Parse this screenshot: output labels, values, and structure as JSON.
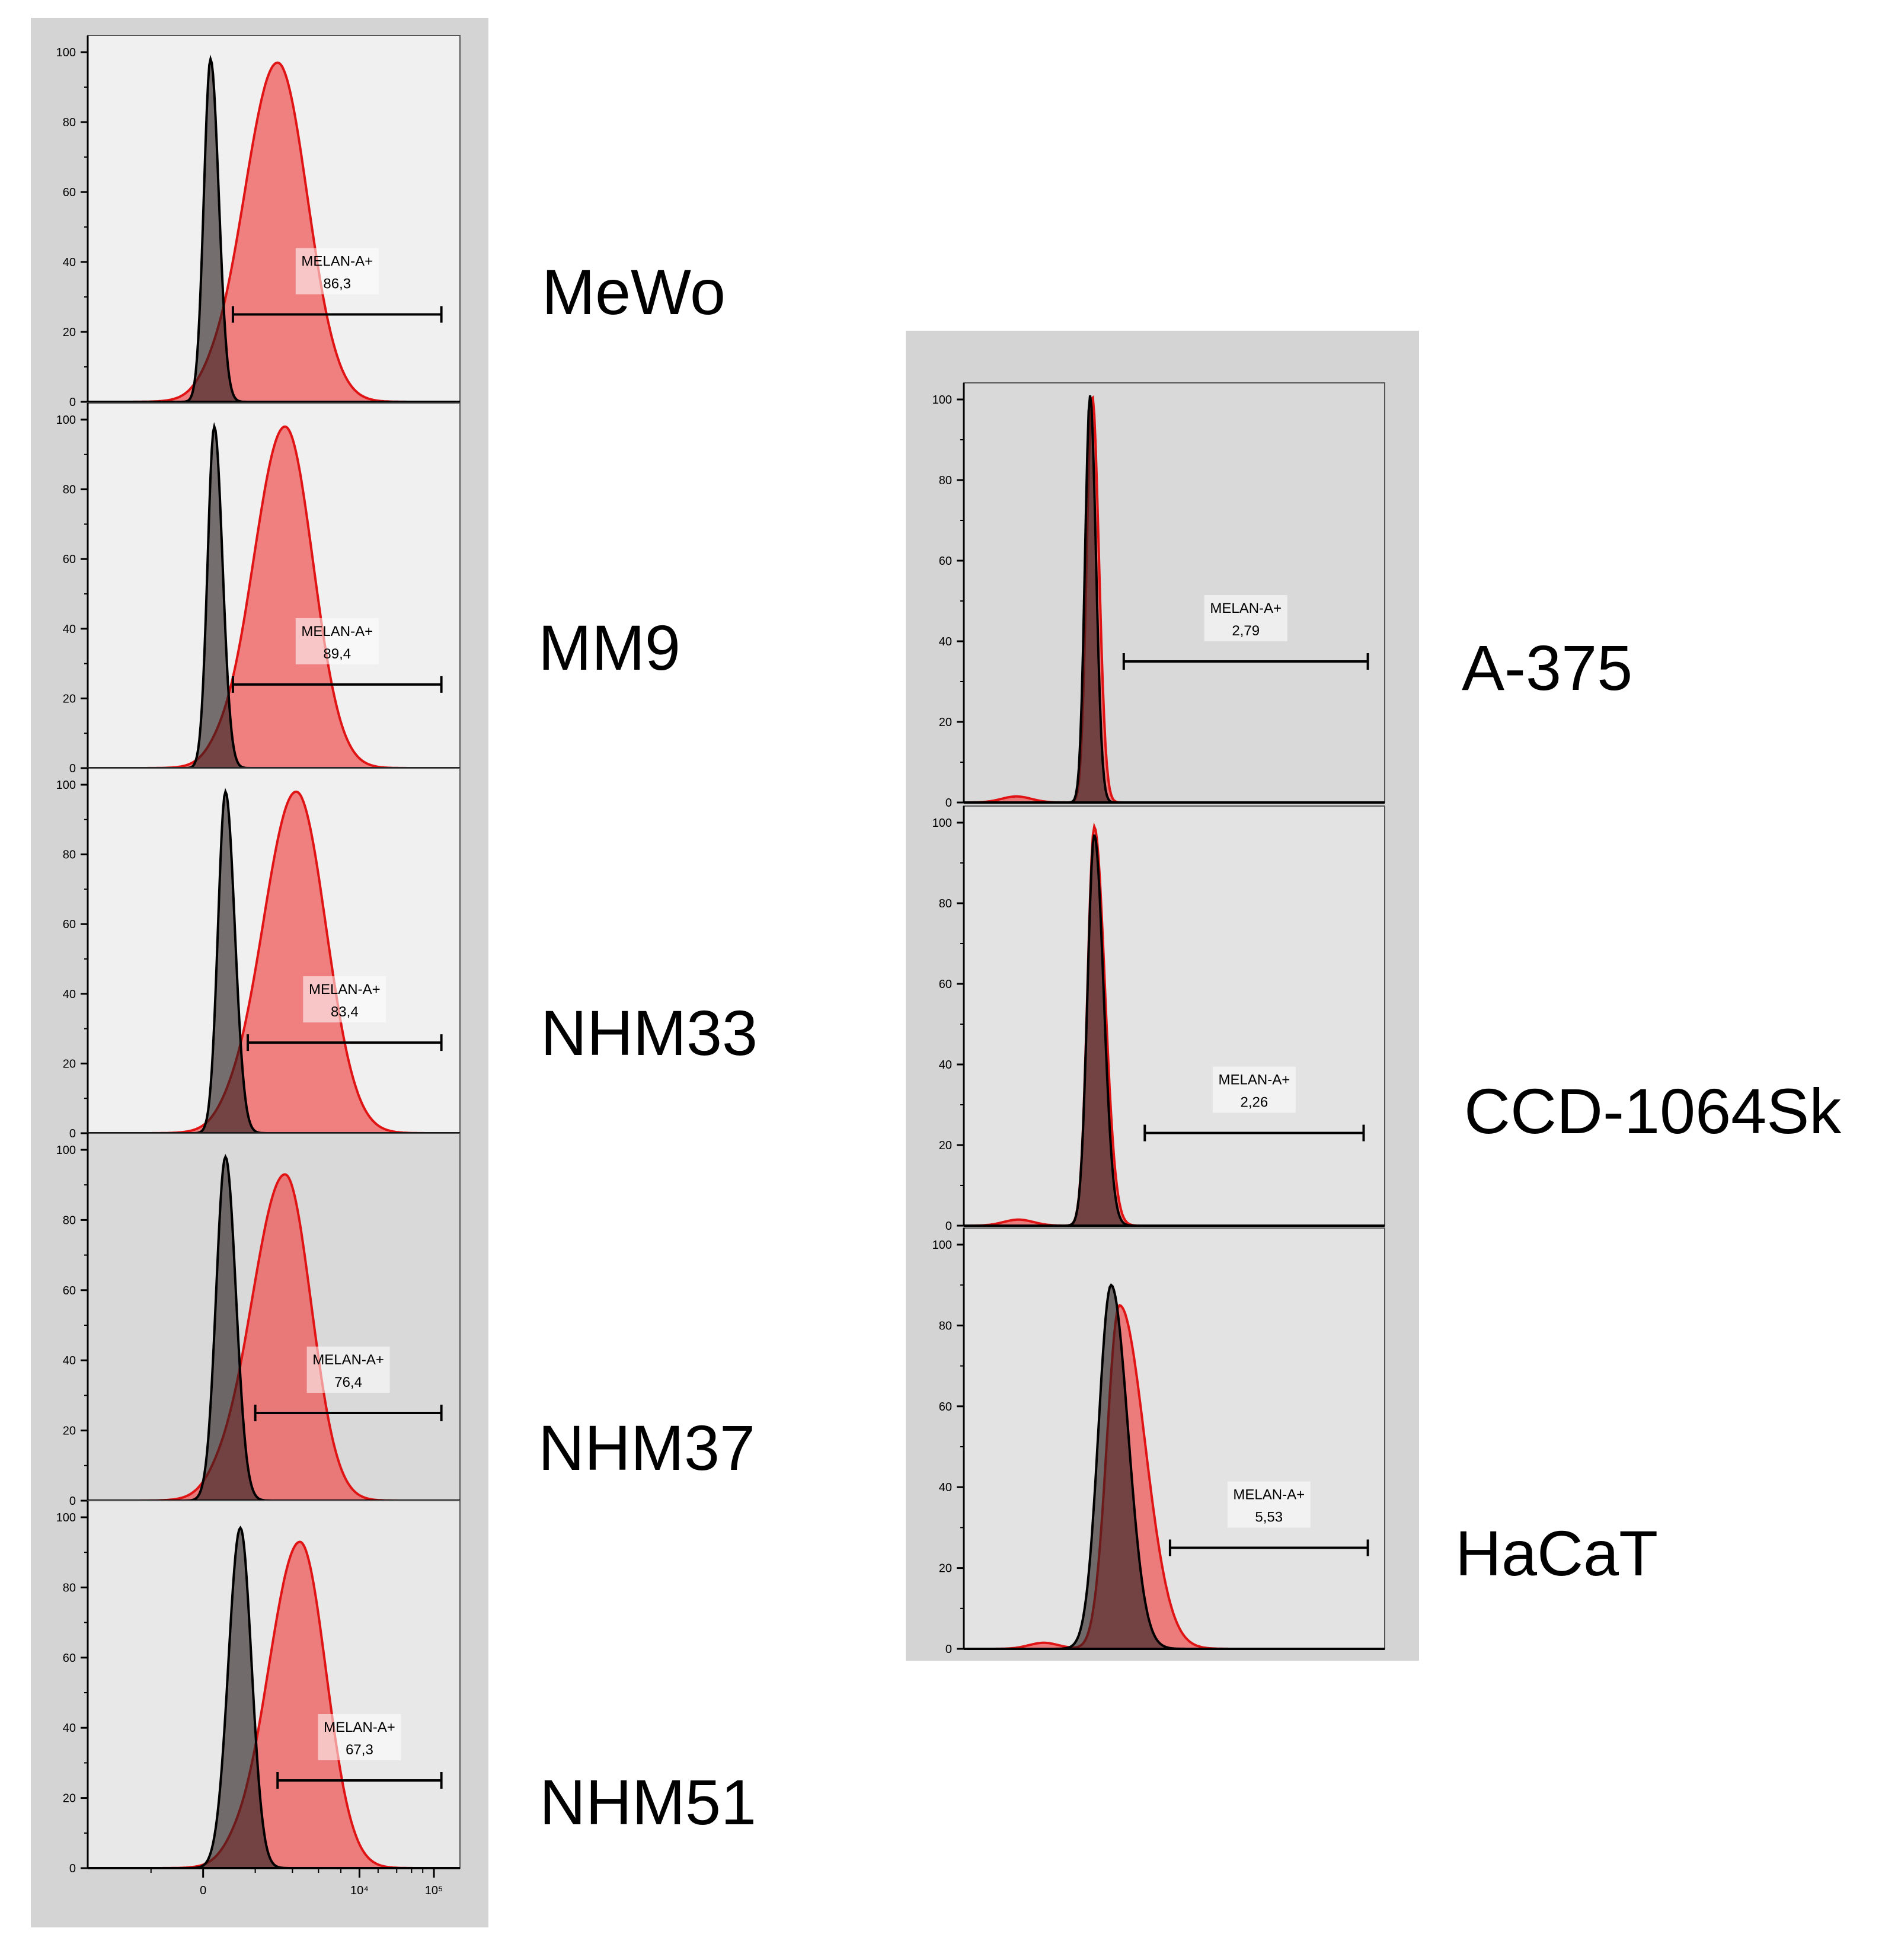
{
  "chart_data": [
    {
      "type": "area",
      "sample": "MeWo",
      "panel_bg": "#f0f0f0",
      "yticks": [
        "0",
        "20",
        "40",
        "60",
        "80",
        "100"
      ],
      "y_range": [
        0,
        100
      ],
      "x_range": [
        0,
        1
      ],
      "gate": {
        "label": "MELAN-A+",
        "value": "86,3",
        "x_start": 0.39,
        "x_end": 0.95,
        "y": 25
      },
      "series": [
        {
          "role": "control",
          "color": "#000000",
          "peak_x": 0.33,
          "peak_y": 98,
          "sigma_left": 0.018,
          "sigma_right": 0.022
        },
        {
          "role": "stained",
          "color": "#e01414",
          "peak_x": 0.51,
          "peak_y": 97,
          "sigma_left": 0.09,
          "sigma_right": 0.08
        }
      ]
    },
    {
      "type": "area",
      "sample": "MM9",
      "panel_bg": "#f0f0f0",
      "yticks": [
        "0",
        "20",
        "40",
        "60",
        "80",
        "100"
      ],
      "y_range": [
        0,
        100
      ],
      "x_range": [
        0,
        1
      ],
      "gate": {
        "label": "MELAN-A+",
        "value": "89,4",
        "x_start": 0.39,
        "x_end": 0.95,
        "y": 24
      },
      "series": [
        {
          "role": "control",
          "color": "#000000",
          "peak_x": 0.34,
          "peak_y": 98,
          "sigma_left": 0.018,
          "sigma_right": 0.022
        },
        {
          "role": "stained",
          "color": "#e01414",
          "peak_x": 0.53,
          "peak_y": 98,
          "sigma_left": 0.085,
          "sigma_right": 0.075
        }
      ]
    },
    {
      "type": "area",
      "sample": "NHM33",
      "panel_bg": "#f0f0f0",
      "yticks": [
        "0",
        "20",
        "40",
        "60",
        "80",
        "100"
      ],
      "y_range": [
        0,
        100
      ],
      "x_range": [
        0,
        1
      ],
      "gate": {
        "label": "MELAN-A+",
        "value": "83,4",
        "x_start": 0.43,
        "x_end": 0.95,
        "y": 26
      },
      "series": [
        {
          "role": "control",
          "color": "#000000",
          "peak_x": 0.37,
          "peak_y": 98,
          "sigma_left": 0.02,
          "sigma_right": 0.025
        },
        {
          "role": "stained",
          "color": "#e01414",
          "peak_x": 0.56,
          "peak_y": 98,
          "sigma_left": 0.09,
          "sigma_right": 0.08
        }
      ]
    },
    {
      "type": "area",
      "sample": "NHM37",
      "panel_bg": "#d9d9d9",
      "yticks": [
        "0",
        "20",
        "40",
        "60",
        "80",
        "100"
      ],
      "y_range": [
        0,
        100
      ],
      "x_range": [
        0,
        1
      ],
      "gate": {
        "label": "MELAN-A+",
        "value": "76,4",
        "x_start": 0.45,
        "x_end": 0.95,
        "y": 25
      },
      "series": [
        {
          "role": "control",
          "color": "#000000",
          "peak_x": 0.37,
          "peak_y": 98,
          "sigma_left": 0.025,
          "sigma_right": 0.028
        },
        {
          "role": "stained",
          "color": "#e01414",
          "peak_x": 0.53,
          "peak_y": 93,
          "sigma_left": 0.09,
          "sigma_right": 0.07
        }
      ]
    },
    {
      "type": "area",
      "sample": "NHM51",
      "panel_bg": "#e8e8e8",
      "yticks": [
        "0",
        "20",
        "40",
        "60",
        "80",
        "100"
      ],
      "y_range": [
        0,
        100
      ],
      "x_range": [
        0,
        1
      ],
      "x_ticks": [
        "0",
        "10⁴",
        "10⁵"
      ],
      "gate": {
        "label": "MELAN-A+",
        "value": "67,3",
        "x_start": 0.51,
        "x_end": 0.95,
        "y": 25
      },
      "series": [
        {
          "role": "control",
          "color": "#000000",
          "peak_x": 0.41,
          "peak_y": 97,
          "sigma_left": 0.032,
          "sigma_right": 0.03
        },
        {
          "role": "stained",
          "color": "#e01414",
          "peak_x": 0.57,
          "peak_y": 93,
          "sigma_left": 0.085,
          "sigma_right": 0.07
        }
      ]
    },
    {
      "type": "area",
      "sample": "A-375",
      "panel_bg": "#d9d9d9",
      "yticks": [
        "0",
        "20",
        "40",
        "60",
        "80",
        "100"
      ],
      "y_range": [
        0,
        100
      ],
      "x_range": [
        0,
        1
      ],
      "gate": {
        "label": "MELAN-A+",
        "value": "2,79",
        "x_start": 0.38,
        "x_end": 0.96,
        "y": 35
      },
      "series": [
        {
          "role": "control",
          "color": "#000000",
          "peak_x": 0.3,
          "peak_y": 101,
          "sigma_left": 0.012,
          "sigma_right": 0.014
        },
        {
          "role": "stained",
          "color": "#e01414",
          "peak_x": 0.305,
          "peak_y": 101,
          "sigma_left": 0.013,
          "sigma_right": 0.016
        }
      ]
    },
    {
      "type": "area",
      "sample": "CCD-1064Sk",
      "panel_bg": "#e3e3e3",
      "yticks": [
        "0",
        "20",
        "40",
        "60",
        "80",
        "100"
      ],
      "y_range": [
        0,
        100
      ],
      "x_range": [
        0,
        1
      ],
      "gate": {
        "label": "MELAN-A+",
        "value": "2,26",
        "x_start": 0.43,
        "x_end": 0.95,
        "y": 23
      },
      "series": [
        {
          "role": "control",
          "color": "#000000",
          "peak_x": 0.31,
          "peak_y": 97,
          "sigma_left": 0.016,
          "sigma_right": 0.022
        },
        {
          "role": "stained",
          "color": "#e01414",
          "peak_x": 0.31,
          "peak_y": 99,
          "sigma_left": 0.016,
          "sigma_right": 0.025
        }
      ]
    },
    {
      "type": "area",
      "sample": "HaCaT",
      "panel_bg": "#e3e3e3",
      "yticks": [
        "0",
        "20",
        "40",
        "60",
        "80",
        "100"
      ],
      "y_range": [
        0,
        100
      ],
      "x_range": [
        0,
        1
      ],
      "gate": {
        "label": "MELAN-A+",
        "value": "5,53",
        "x_start": 0.49,
        "x_end": 0.96,
        "y": 25
      },
      "series": [
        {
          "role": "control",
          "color": "#000000",
          "peak_x": 0.35,
          "peak_y": 90,
          "sigma_left": 0.03,
          "sigma_right": 0.04
        },
        {
          "role": "stained",
          "color": "#e01414",
          "peak_x": 0.37,
          "peak_y": 85,
          "sigma_left": 0.03,
          "sigma_right": 0.06
        }
      ]
    }
  ]
}
